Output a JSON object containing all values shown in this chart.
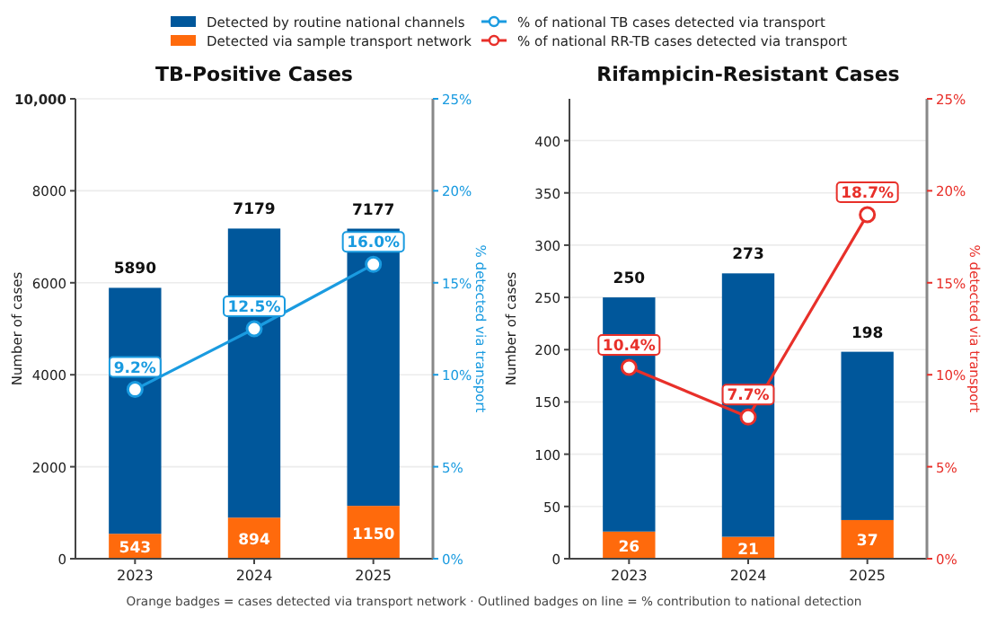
{
  "chart_data": [
    {
      "type": "bar",
      "title": "TB-Positive Cases",
      "ylabel": "Number of cases",
      "y2label": "% detected via transport",
      "categories": [
        "2023",
        "2024",
        "2025"
      ],
      "stacked": true,
      "grid": "y",
      "legend": "top",
      "marker": "circle",
      "ylim": [
        0,
        10000
      ],
      "yticks": [
        0,
        2000,
        4000,
        6000,
        8000,
        {
          "value": 10000,
          "label": "10,000"
        }
      ],
      "y2lim": [
        0,
        25
      ],
      "y2ticks": [
        {
          "value": 0,
          "label": "0%"
        },
        {
          "value": 5,
          "label": "5%"
        },
        {
          "value": 10,
          "label": "10%"
        },
        {
          "value": 15,
          "label": "15%"
        },
        {
          "value": 20,
          "label": "20%"
        },
        {
          "value": 25,
          "label": "25%"
        }
      ],
      "series": [
        {
          "name": "Detected via sample transport network",
          "color": "#ff6a0c",
          "values": [
            543,
            894,
            1150
          ],
          "value_labels": [
            "543",
            "894",
            "1150"
          ]
        },
        {
          "name": "Detected by routine national channels",
          "color": "#00579b",
          "values": [
            5347,
            6285,
            6027
          ]
        },
        {
          "type": "line",
          "axis": "y2",
          "name": "% of national TB cases detected via transport",
          "color": "#1a9be0",
          "values": [
            9.2,
            12.5,
            16.0
          ],
          "value_labels": [
            "9.2%",
            "12.5%",
            "16.0%"
          ]
        }
      ],
      "totals": [
        "5890",
        "7179",
        "7177"
      ],
      "annotations": [
        "Orange badges = cases detected via transport network · Outlined badges on line = % contribution to national detection"
      ]
    },
    {
      "type": "bar",
      "title": "Rifampicin-Resistant Cases",
      "ylabel": "Number of cases",
      "y2label": "% detected via transport",
      "categories": [
        "2023",
        "2024",
        "2025"
      ],
      "stacked": true,
      "grid": "y",
      "legend": "top",
      "marker": "circle",
      "ylim": [
        0,
        440
      ],
      "yticks": [
        0,
        50,
        100,
        150,
        200,
        250,
        300,
        350,
        400
      ],
      "y2lim": [
        0,
        25
      ],
      "y2ticks": [
        {
          "value": 0,
          "label": "0%"
        },
        {
          "value": 5,
          "label": "5%"
        },
        {
          "value": 10,
          "label": "10%"
        },
        {
          "value": 15,
          "label": "15%"
        },
        {
          "value": 20,
          "label": "20%"
        },
        {
          "value": 25,
          "label": "25%"
        }
      ],
      "series": [
        {
          "color": "#ff6a0c",
          "values": [
            26,
            21,
            37
          ],
          "value_labels": [
            "26",
            "21",
            "37"
          ]
        },
        {
          "color": "#00579b",
          "values": [
            224,
            252,
            161
          ]
        },
        {
          "type": "line",
          "axis": "y2",
          "name": "% of national RR-TB cases detected via transport",
          "color": "#e8302a",
          "values": [
            10.4,
            7.7,
            18.7
          ],
          "value_labels": [
            "10.4%",
            "7.7%",
            "18.7%"
          ]
        }
      ],
      "totals": [
        "250",
        "273",
        "198"
      ]
    }
  ]
}
